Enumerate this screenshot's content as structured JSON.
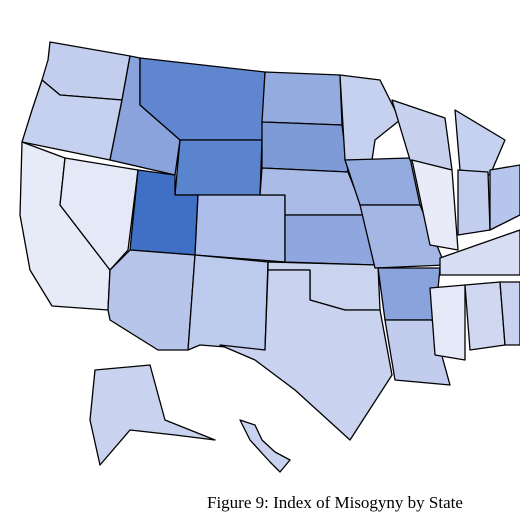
{
  "caption": "Figure 9: Index of Misogyny by State",
  "fills": [
    "#c3cdee",
    "#c6d0ef",
    "#e7eaf7",
    "#e5e9f7",
    "#8ba3dc",
    "#5f86cf",
    "#5b84cf",
    "#3f70c5",
    "#b7c5ea",
    "#adbeea",
    "#bccaed",
    "#93abdf",
    "#7e9bd8",
    "#a9bbe6",
    "#8fa6de",
    "#cbd4ef",
    "#c9d3ef",
    "#c6d0ef",
    "#93abdf",
    "#a4b6e4",
    "#8aa3dc",
    "#c2cdee",
    "#c8d2ef",
    "#e9ecf8",
    "#c6d0ef",
    "#c3cdee",
    "#b6c5eb",
    "#d7ddf2",
    "#e5e9f7",
    "#cfd8f0",
    "#c9d2ef",
    "#c9d3ef",
    "#c9d3ef"
  ]
}
